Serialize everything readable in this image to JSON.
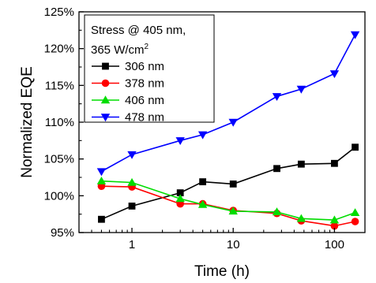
{
  "chart_data": {
    "type": "line",
    "xscale": "log",
    "xlabel": "Time (h)",
    "ylabel": "Normalized EQE",
    "xlim": [
      0.3,
      200
    ],
    "ylim": [
      95,
      125
    ],
    "xticks": [
      1,
      10,
      100
    ],
    "xtick_labels": [
      "1",
      "10",
      "100"
    ],
    "yticks": [
      95,
      100,
      105,
      110,
      115,
      120,
      125
    ],
    "ytick_labels": [
      "95%",
      "100%",
      "105%",
      "110%",
      "115%",
      "120%",
      "125%"
    ],
    "grid": false,
    "legend_position": "top-left",
    "legend_title": [
      "Stress @ 405 nm,",
      "365 W/cm"
    ],
    "legend_title_sup": "2",
    "series": [
      {
        "name": "306 nm",
        "color": "#000000",
        "marker": "square",
        "x": [
          0.5,
          1,
          3,
          5,
          10,
          27,
          47,
          100,
          160
        ],
        "y": [
          96.8,
          98.6,
          100.4,
          101.9,
          101.6,
          103.7,
          104.3,
          104.4,
          106.6
        ]
      },
      {
        "name": "378 nm",
        "color": "#ff0000",
        "marker": "circle",
        "x": [
          0.5,
          1,
          3,
          5,
          10,
          27,
          47,
          100,
          160
        ],
        "y": [
          101.3,
          101.2,
          98.9,
          98.9,
          98.0,
          97.6,
          96.6,
          95.9,
          96.5
        ]
      },
      {
        "name": "406 nm",
        "color": "#00dd00",
        "marker": "triangle-up",
        "x": [
          0.5,
          1,
          3,
          5,
          10,
          27,
          47,
          100,
          160
        ],
        "y": [
          102.0,
          101.8,
          99.6,
          98.8,
          97.9,
          97.8,
          96.9,
          96.7,
          97.7
        ]
      },
      {
        "name": "478 nm",
        "color": "#0000ff",
        "marker": "triangle-down",
        "x": [
          0.5,
          1,
          3,
          5,
          10,
          27,
          47,
          100,
          160
        ],
        "y": [
          103.3,
          105.6,
          107.5,
          108.3,
          110.0,
          113.5,
          114.5,
          116.6,
          121.9
        ]
      }
    ]
  }
}
